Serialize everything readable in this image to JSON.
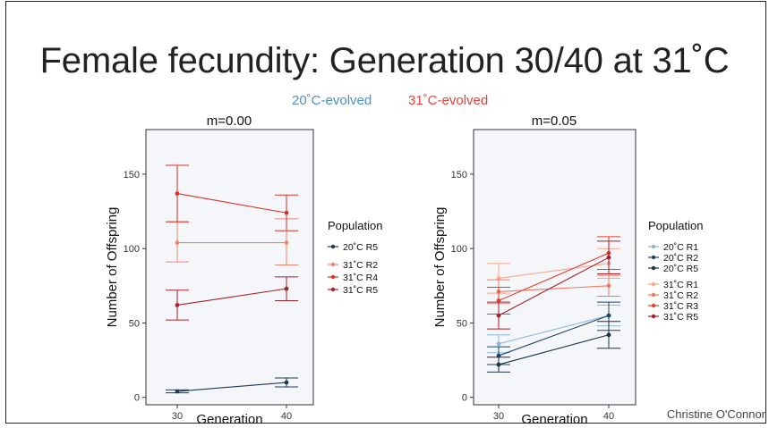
{
  "slide": {
    "title": "Female fecundity: Generation 30/40 at 31˚C",
    "legend_20": "20˚C-evolved",
    "legend_31": "31˚C-evolved",
    "color_20": "#4a90c8",
    "color_31": "#e8403a",
    "credit": "Christine O'Connor"
  },
  "chart_data": [
    {
      "type": "line",
      "title": "m=0.00",
      "xlabel": "Generation",
      "ylabel": "Number of Offspring",
      "x": [
        30,
        40
      ],
      "xticks": [
        "30",
        "40"
      ],
      "yticks": [
        0,
        50,
        100,
        150
      ],
      "ylim": [
        -5,
        180
      ],
      "legend_title": "Population",
      "series": [
        {
          "name": "20˚C R5",
          "group": "20",
          "color": "#1c3a57",
          "values": [
            4,
            10
          ],
          "err": [
            [
              3,
              5
            ],
            [
              7,
              13
            ]
          ]
        },
        {
          "name": "31˚C R2",
          "group": "31",
          "color": "#f2866a",
          "values": [
            104,
            104
          ],
          "err": [
            [
              91,
              118
            ],
            [
              89,
              120
            ]
          ]
        },
        {
          "name": "31˚C R4",
          "group": "31",
          "color": "#d93028",
          "values": [
            137,
            124
          ],
          "err": [
            [
              118,
              156
            ],
            [
              112,
              136
            ]
          ]
        },
        {
          "name": "31˚C R5",
          "group": "31",
          "color": "#a8222a",
          "values": [
            62,
            73
          ],
          "err": [
            [
              52,
              72
            ],
            [
              65,
              81
            ]
          ]
        }
      ]
    },
    {
      "type": "line",
      "title": "m=0.05",
      "xlabel": "Generation",
      "ylabel": "Number of Offspring",
      "x": [
        30,
        40
      ],
      "xticks": [
        "30",
        "40"
      ],
      "yticks": [
        0,
        50,
        100,
        150
      ],
      "ylim": [
        -5,
        180
      ],
      "legend_title": "Population",
      "series": [
        {
          "name": "20˚C R1",
          "group": "20",
          "color": "#8cb8d8",
          "values": [
            36,
            55
          ],
          "err": [
            [
              30,
              42
            ],
            [
              48,
              62
            ]
          ]
        },
        {
          "name": "20˚C R2",
          "group": "20",
          "color": "#1e4468",
          "values": [
            28,
            55
          ],
          "err": [
            [
              22,
              34
            ],
            [
              45,
              64
            ]
          ]
        },
        {
          "name": "20˚C R5",
          "group": "20",
          "color": "#17324a",
          "values": [
            22,
            42
          ],
          "err": [
            [
              17,
              27
            ],
            [
              33,
              51
            ]
          ]
        },
        {
          "name": "31˚C R1",
          "group": "31",
          "color": "#f9a78e",
          "values": [
            80,
            90
          ],
          "err": [
            [
              70,
              90
            ],
            [
              80,
              100
            ]
          ]
        },
        {
          "name": "31˚C R2",
          "group": "31",
          "color": "#f07a5e",
          "values": [
            71,
            75
          ],
          "err": [
            [
              63,
              79
            ],
            [
              68,
              82
            ]
          ]
        },
        {
          "name": "31˚C R3",
          "group": "31",
          "color": "#e3402f",
          "values": [
            65,
            97
          ],
          "err": [
            [
              56,
              74
            ],
            [
              86,
              108
            ]
          ]
        },
        {
          "name": "31˚C R5",
          "group": "31",
          "color": "#a81f26",
          "values": [
            55,
            94
          ],
          "err": [
            [
              46,
              64
            ],
            [
              83,
              105
            ]
          ]
        }
      ]
    }
  ]
}
